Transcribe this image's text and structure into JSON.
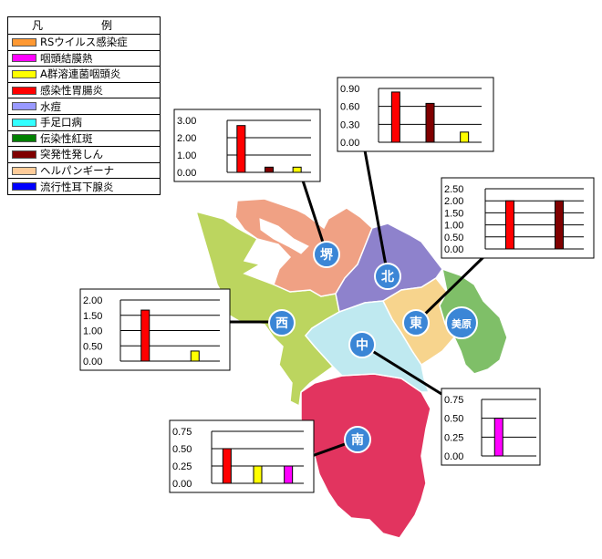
{
  "legend": {
    "title": "凡　例",
    "items": [
      {
        "label": "RSウイルス感染症",
        "color": "#ff9933"
      },
      {
        "label": "咽頭結膜熱",
        "color": "#ff00ff"
      },
      {
        "label": "A群溶連菌咽頭炎",
        "color": "#ffff00"
      },
      {
        "label": "感染性胃腸炎",
        "color": "#ff0000"
      },
      {
        "label": "水痘",
        "color": "#9999ff"
      },
      {
        "label": "手足口病",
        "color": "#33ffff"
      },
      {
        "label": "伝染性紅斑",
        "color": "#008000"
      },
      {
        "label": "突発性発しん",
        "color": "#800000"
      },
      {
        "label": "ヘルパンギーナ",
        "color": "#ffcc99"
      },
      {
        "label": "流行性耳下腺炎",
        "color": "#0000ff"
      }
    ]
  },
  "districts": [
    {
      "id": "sakai",
      "label": "堺",
      "color": "#f0a184"
    },
    {
      "id": "kita",
      "label": "北",
      "color": "#8e82cc"
    },
    {
      "id": "higashi",
      "label": "東",
      "color": "#f7d48d"
    },
    {
      "id": "mihara",
      "label": "美原",
      "color": "#7fbf68"
    },
    {
      "id": "nishi",
      "label": "西",
      "color": "#bcd55f"
    },
    {
      "id": "naka",
      "label": "中",
      "color": "#bfe9f0"
    },
    {
      "id": "minami",
      "label": "南",
      "color": "#e2345f"
    }
  ],
  "chart_data": [
    {
      "type": "bar",
      "district": "堺",
      "yticks": [
        "3.00",
        "2.00",
        "1.00",
        "0.00"
      ],
      "ylim": [
        0,
        3
      ],
      "bars": [
        {
          "disease": "感染性胃腸炎",
          "value": 2.7,
          "color": "#ff0000"
        },
        {
          "disease": "突発性発しん",
          "value": 0.3,
          "color": "#800000"
        },
        {
          "disease": "A群溶連菌咽頭炎",
          "value": 0.3,
          "color": "#ffff00"
        }
      ]
    },
    {
      "type": "bar",
      "district": "北",
      "yticks": [
        "0.90",
        "0.60",
        "0.30",
        "0.00"
      ],
      "ylim": [
        0,
        0.9
      ],
      "bars": [
        {
          "disease": "感染性胃腸炎",
          "value": 0.84,
          "color": "#ff0000"
        },
        {
          "disease": "突発性発しん",
          "value": 0.65,
          "color": "#800000"
        },
        {
          "disease": "A群溶連菌咽頭炎",
          "value": 0.17,
          "color": "#ffff00"
        }
      ]
    },
    {
      "type": "bar",
      "district": "東",
      "yticks": [
        "2.50",
        "2.00",
        "1.50",
        "1.00",
        "0.50",
        "0.00"
      ],
      "ylim": [
        0,
        2.5
      ],
      "bars": [
        {
          "disease": "感染性胃腸炎",
          "value": 2.0,
          "color": "#ff0000"
        },
        {
          "disease": "突発性発しん",
          "value": 2.0,
          "color": "#800000"
        }
      ]
    },
    {
      "type": "bar",
      "district": "西",
      "yticks": [
        "2.00",
        "1.50",
        "1.00",
        "0.50",
        "0.00"
      ],
      "ylim": [
        0,
        2
      ],
      "bars": [
        {
          "disease": "感染性胃腸炎",
          "value": 1.67,
          "color": "#ff0000"
        },
        {
          "disease": "A群溶連菌咽頭炎",
          "value": 0.33,
          "color": "#ffff00"
        }
      ]
    },
    {
      "type": "bar",
      "district": "中",
      "yticks": [
        "0.75",
        "0.50",
        "0.25",
        "0.00"
      ],
      "ylim": [
        0,
        0.75
      ],
      "bars": [
        {
          "disease": "咽頭結膜熱",
          "value": 0.5,
          "color": "#ff00ff"
        }
      ]
    },
    {
      "type": "bar",
      "district": "南",
      "yticks": [
        "0.75",
        "0.50",
        "0.25",
        "0.00"
      ],
      "ylim": [
        0,
        0.75
      ],
      "bars": [
        {
          "disease": "感染性胃腸炎",
          "value": 0.5,
          "color": "#ff0000"
        },
        {
          "disease": "A群溶連菌咽頭炎",
          "value": 0.25,
          "color": "#ffff00"
        },
        {
          "disease": "咽頭結膜熱",
          "value": 0.25,
          "color": "#ff00ff"
        }
      ]
    }
  ]
}
